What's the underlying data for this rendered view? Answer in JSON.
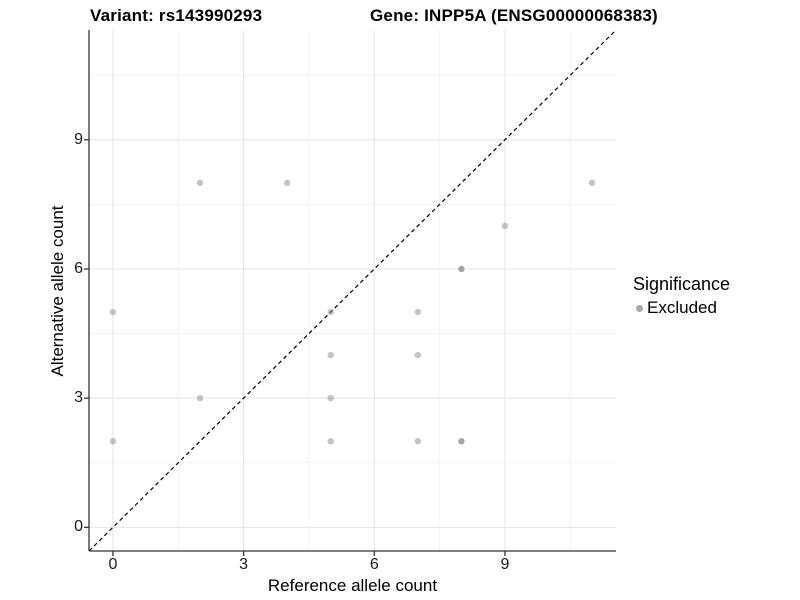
{
  "title": {
    "variant": "Variant: rs143990293",
    "gene": "Gene: INPP5A (ENSG00000068383)"
  },
  "legend": {
    "title": "Significance",
    "items": [
      {
        "label": "Excluded",
        "color": "#a9a9a9"
      }
    ]
  },
  "chart_data": {
    "type": "scatter",
    "title": "Variant: rs143990293  /  Gene: INPP5A (ENSG00000068383)",
    "xlabel": "Reference allele count",
    "ylabel": "Alternative allele count",
    "xlim": [
      -0.55,
      11.55
    ],
    "ylim": [
      -0.55,
      11.55
    ],
    "x_ticks": [
      0,
      3,
      6,
      9
    ],
    "y_ticks": [
      0,
      3,
      6,
      9
    ],
    "x_minor_ticks": [
      1.5,
      4.5,
      7.5,
      10.5
    ],
    "y_minor_ticks": [
      1.5,
      4.5,
      7.5,
      10.5
    ],
    "grid": true,
    "legend_position": "right",
    "reference_line": {
      "type": "identity",
      "slope": 1,
      "intercept": 0,
      "style": "dashed",
      "color": "#000000"
    },
    "series": [
      {
        "name": "Excluded",
        "color": "#8a8a8a",
        "alpha": 0.5,
        "points": [
          {
            "x": 0,
            "y": 2,
            "count": 1
          },
          {
            "x": 0,
            "y": 5,
            "count": 1
          },
          {
            "x": 2,
            "y": 3,
            "count": 1
          },
          {
            "x": 2,
            "y": 8,
            "count": 1
          },
          {
            "x": 4,
            "y": 8,
            "count": 1
          },
          {
            "x": 5,
            "y": 2,
            "count": 1
          },
          {
            "x": 5,
            "y": 3,
            "count": 1
          },
          {
            "x": 5,
            "y": 4,
            "count": 1
          },
          {
            "x": 5,
            "y": 5,
            "count": 1
          },
          {
            "x": 7,
            "y": 2,
            "count": 1
          },
          {
            "x": 7,
            "y": 4,
            "count": 1
          },
          {
            "x": 7,
            "y": 5,
            "count": 1
          },
          {
            "x": 8,
            "y": 2,
            "count": 2
          },
          {
            "x": 8,
            "y": 6,
            "count": 2
          },
          {
            "x": 9,
            "y": 7,
            "count": 1
          },
          {
            "x": 11,
            "y": 8,
            "count": 1
          }
        ]
      }
    ],
    "style": {
      "grid_major_color": "#e4e4e4",
      "grid_minor_color": "#f2f2f2",
      "axis_color": "#333333",
      "point_radius": 3.2
    }
  }
}
